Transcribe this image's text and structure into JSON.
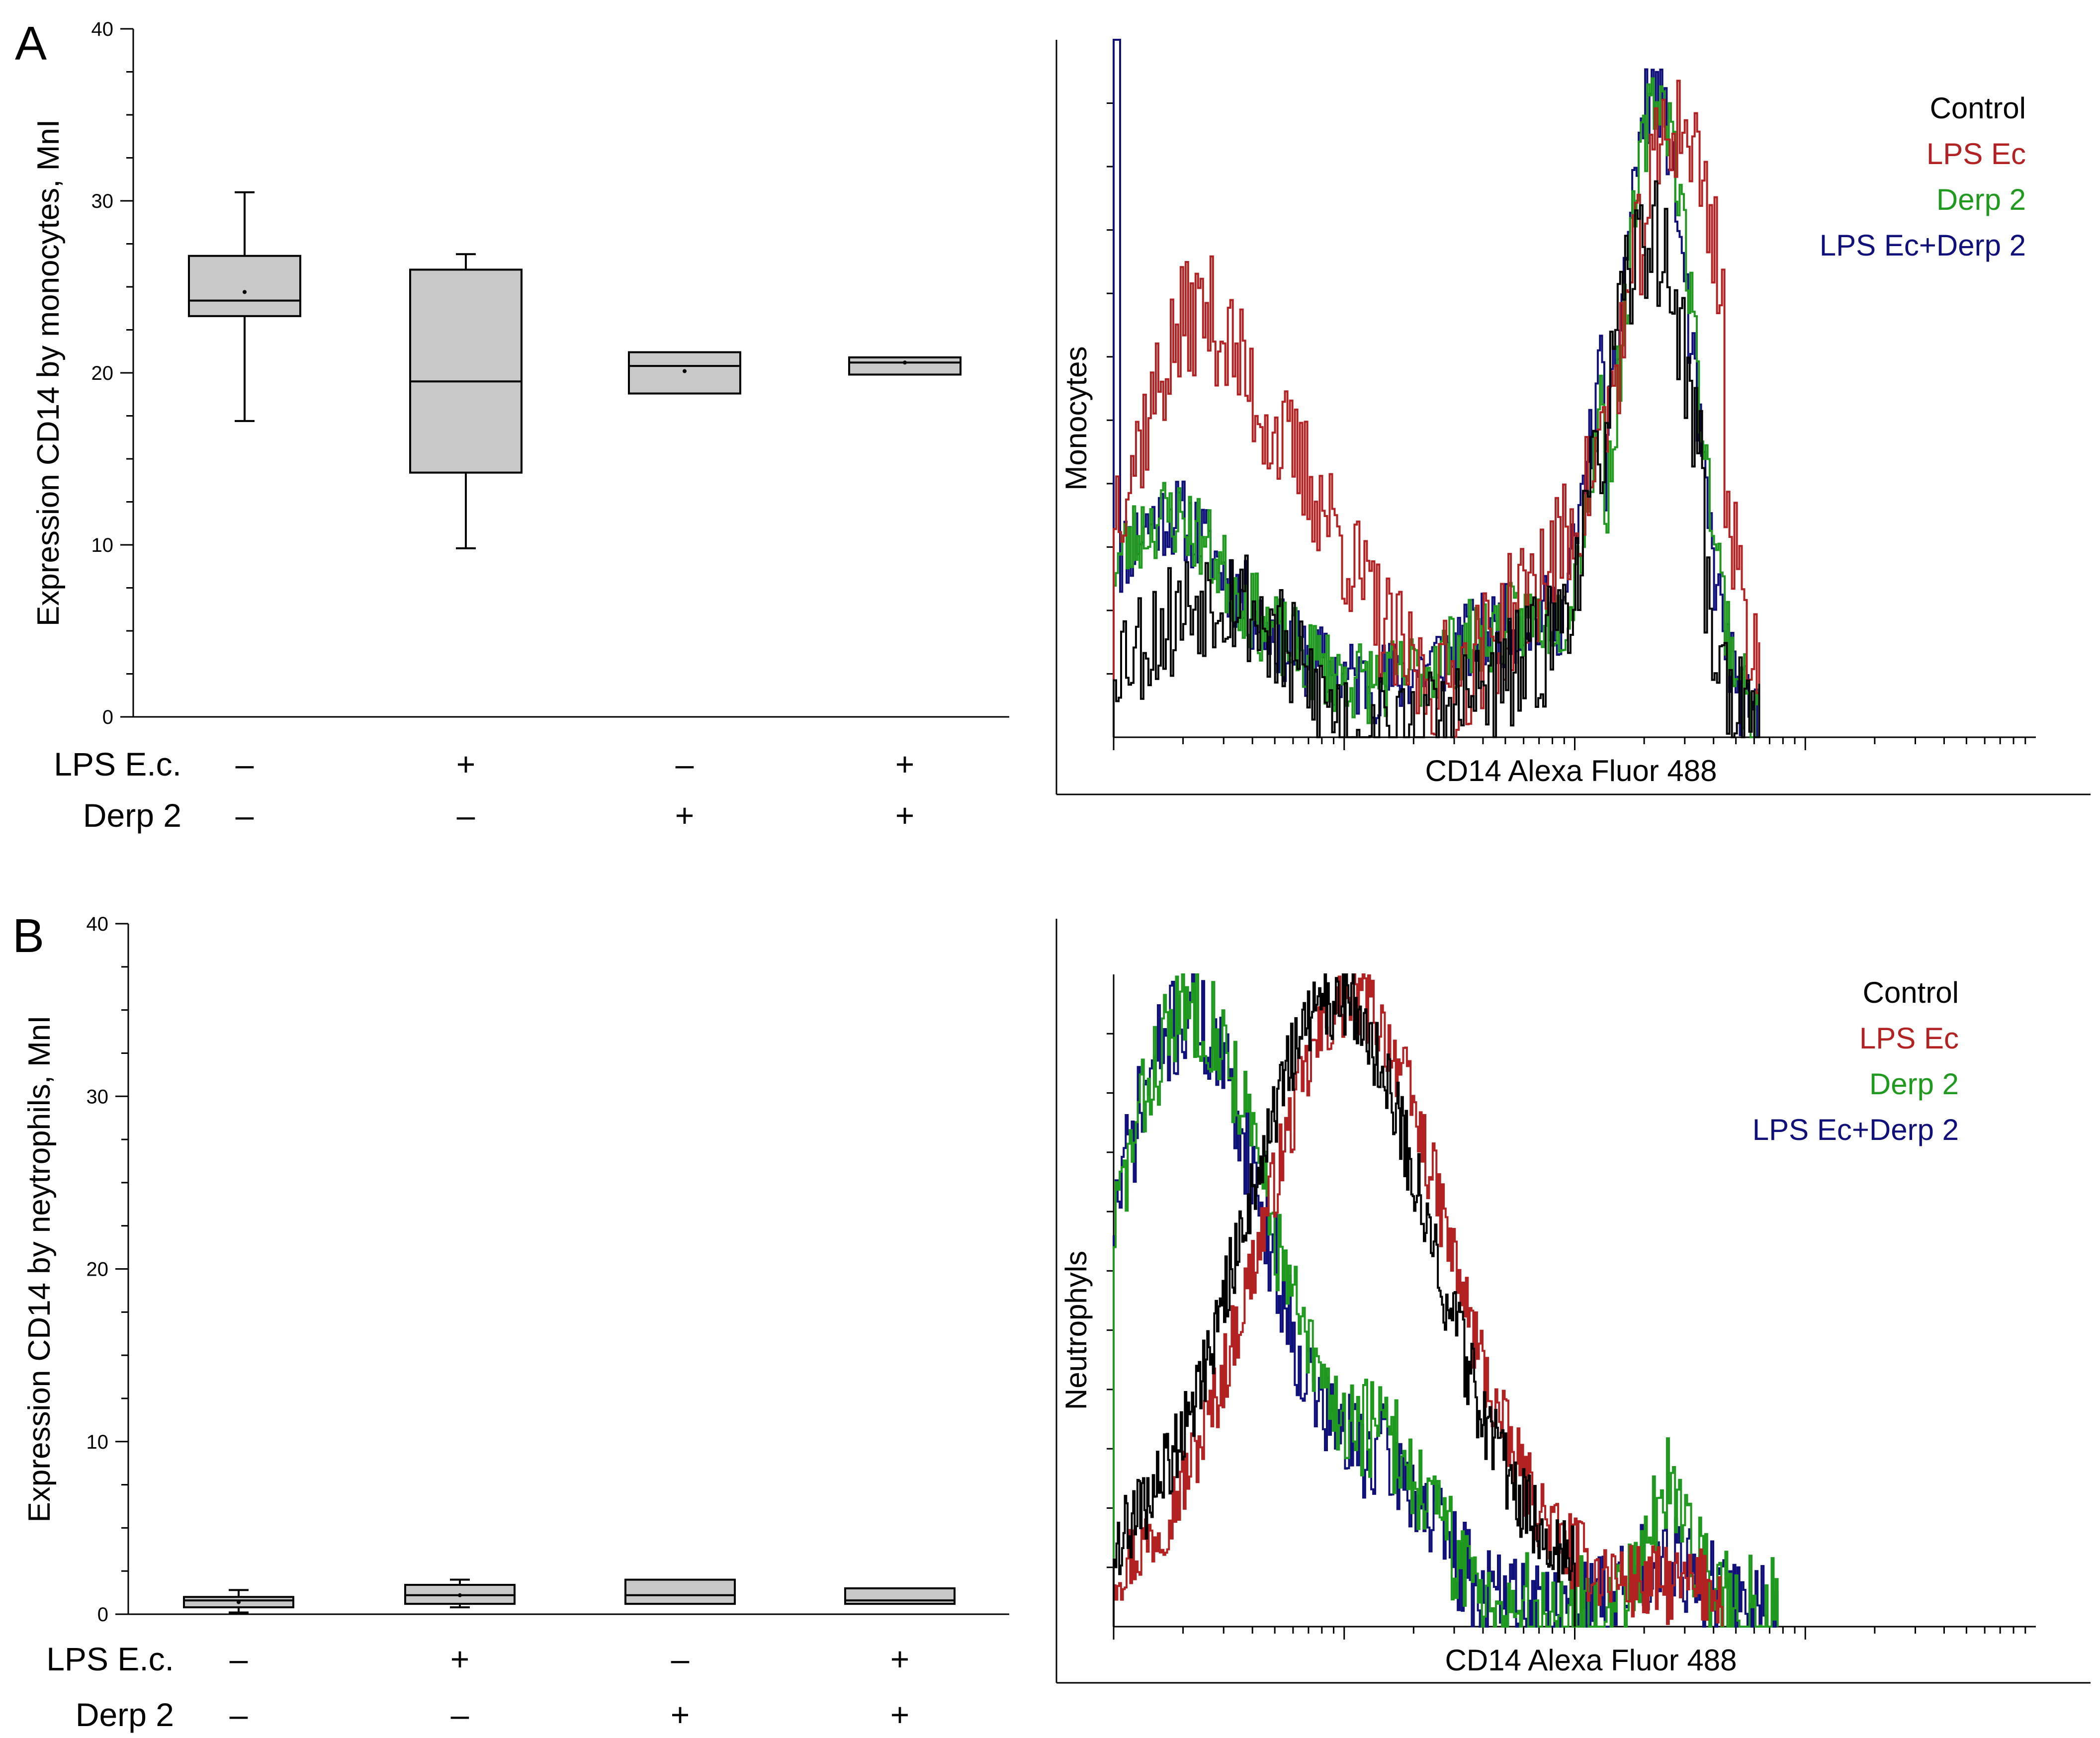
{
  "colors": {
    "control": "#000000",
    "lps": "#b22222",
    "derp": "#1f9a1f",
    "combo": "#10107a"
  },
  "chart_data": [
    {
      "type": "box",
      "panel_label": "A",
      "ylabel": "Expression CD14 by monocytes, MnI",
      "ylim": [
        0,
        40
      ],
      "yticks": [
        "0",
        "10",
        "20",
        "30",
        "40"
      ],
      "condition_rows": [
        {
          "label": "LPS E.c.",
          "marks": [
            "–",
            "+",
            "–",
            "+"
          ]
        },
        {
          "label": "Derp 2",
          "marks": [
            "–",
            "–",
            "+",
            "+"
          ]
        }
      ],
      "boxes": [
        {
          "q1": 23.3,
          "median": 24.2,
          "q3": 26.8,
          "mean": 24.7,
          "whisker_low": 17.2,
          "whisker_high": 30.5
        },
        {
          "q1": 14.2,
          "median": 19.5,
          "q3": 26.0,
          "mean": null,
          "whisker_low": 9.8,
          "whisker_high": 26.9
        },
        {
          "q1": 18.8,
          "median": 20.4,
          "q3": 21.2,
          "mean": 20.1,
          "whisker_low": null,
          "whisker_high": null
        },
        {
          "q1": 19.9,
          "median": 20.6,
          "q3": 20.9,
          "mean": 20.6,
          "whisker_low": null,
          "whisker_high": null
        }
      ]
    },
    {
      "type": "histogram-overlay",
      "ylabel": "Monocytes",
      "xlabel": "CD14 Alexa Fluor 488",
      "legend": [
        "Control",
        "LPS Ec",
        "Derp 2",
        "LPS Ec+Derp 2"
      ]
    },
    {
      "type": "box",
      "panel_label": "B",
      "ylabel": "Expression CD14 by neytrophils, MnI",
      "ylim": [
        0,
        40
      ],
      "yticks": [
        "0",
        "10",
        "20",
        "30",
        "40"
      ],
      "condition_rows": [
        {
          "label": "LPS E.c.",
          "marks": [
            "–",
            "+",
            "–",
            "+"
          ]
        },
        {
          "label": "Derp 2",
          "marks": [
            "–",
            "–",
            "+",
            "+"
          ]
        }
      ],
      "boxes": [
        {
          "q1": 0.4,
          "median": 0.8,
          "q3": 1.0,
          "mean": 0.7,
          "whisker_low": 0.1,
          "whisker_high": 1.4
        },
        {
          "q1": 0.6,
          "median": 1.1,
          "q3": 1.7,
          "mean": 1.1,
          "whisker_low": 0.4,
          "whisker_high": 2.0
        },
        {
          "q1": 0.6,
          "median": 1.1,
          "q3": 2.0,
          "mean": null,
          "whisker_low": null,
          "whisker_high": null
        },
        {
          "q1": 0.6,
          "median": 0.8,
          "q3": 1.5,
          "mean": null,
          "whisker_low": null,
          "whisker_high": null
        }
      ]
    },
    {
      "type": "histogram-overlay",
      "ylabel": "Neutrophyls",
      "xlabel": "CD14 Alexa Fluor 488",
      "legend": [
        "Control",
        "LPS Ec",
        "Derp 2",
        "LPS Ec+Derp 2"
      ]
    }
  ]
}
